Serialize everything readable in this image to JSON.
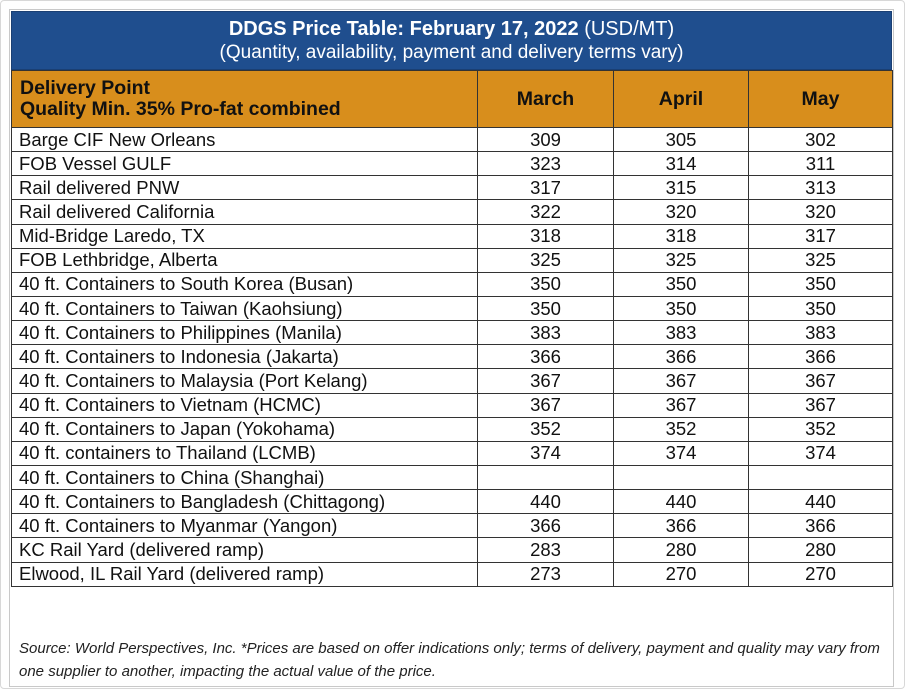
{
  "title": {
    "main": "DDGS Price Table: February 17, 2022",
    "unit": "(USD/MT)",
    "subtitle": "(Quantity, availability, payment and delivery terms vary)"
  },
  "header": {
    "delivery_point": "Delivery Point",
    "quality": "Quality Min. 35% Pro-fat combined",
    "months": [
      "March",
      "April",
      "May"
    ]
  },
  "rows": [
    {
      "location": "Barge CIF New Orleans",
      "march": "309",
      "april": "305",
      "may": "302"
    },
    {
      "location": "FOB Vessel GULF",
      "march": "323",
      "april": "314",
      "may": "311"
    },
    {
      "location": "Rail delivered PNW",
      "march": "317",
      "april": "315",
      "may": "313"
    },
    {
      "location": "Rail delivered California",
      "march": "322",
      "april": "320",
      "may": "320"
    },
    {
      "location": "Mid-Bridge Laredo, TX",
      "march": "318",
      "april": "318",
      "may": "317"
    },
    {
      "location": "FOB Lethbridge, Alberta",
      "march": "325",
      "april": "325",
      "may": "325"
    },
    {
      "location": "40 ft. Containers to South Korea (Busan)",
      "march": "350",
      "april": "350",
      "may": "350"
    },
    {
      "location": "40 ft. Containers to Taiwan (Kaohsiung)",
      "march": "350",
      "april": "350",
      "may": "350"
    },
    {
      "location": "40 ft. Containers to Philippines (Manila)",
      "march": "383",
      "april": "383",
      "may": "383"
    },
    {
      "location": "40 ft. Containers to Indonesia (Jakarta)",
      "march": "366",
      "april": "366",
      "may": "366"
    },
    {
      "location": "40 ft. Containers to Malaysia (Port Kelang)",
      "march": "367",
      "april": "367",
      "may": "367"
    },
    {
      "location": "40 ft. Containers to Vietnam (HCMC)",
      "march": "367",
      "april": "367",
      "may": "367"
    },
    {
      "location": "40 ft. Containers to Japan (Yokohama)",
      "march": "352",
      "april": "352",
      "may": "352"
    },
    {
      "location": "40 ft. containers to Thailand (LCMB)",
      "march": "374",
      "april": "374",
      "may": "374"
    },
    {
      "location": "40 ft. Containers to China (Shanghai)",
      "march": "",
      "april": "",
      "may": ""
    },
    {
      "location": "40 ft. Containers to Bangladesh (Chittagong)",
      "march": "440",
      "april": "440",
      "may": "440"
    },
    {
      "location": "40 ft. Containers to Myanmar (Yangon)",
      "march": "366",
      "april": "366",
      "may": "366"
    },
    {
      "location": "KC Rail Yard (delivered ramp)",
      "march": "283",
      "april": "280",
      "may": "280"
    },
    {
      "location": "Elwood, IL Rail Yard (delivered ramp)",
      "march": "273",
      "april": "270",
      "may": "270"
    }
  ],
  "source_note": "Source: World Perspectives, Inc. *Prices are based on offer indications only; terms of delivery, payment and quality may vary from one supplier to another, impacting the actual value of the price.",
  "colors": {
    "title_bg": "#1f4e8e",
    "header_bg": "#d88e1c"
  }
}
